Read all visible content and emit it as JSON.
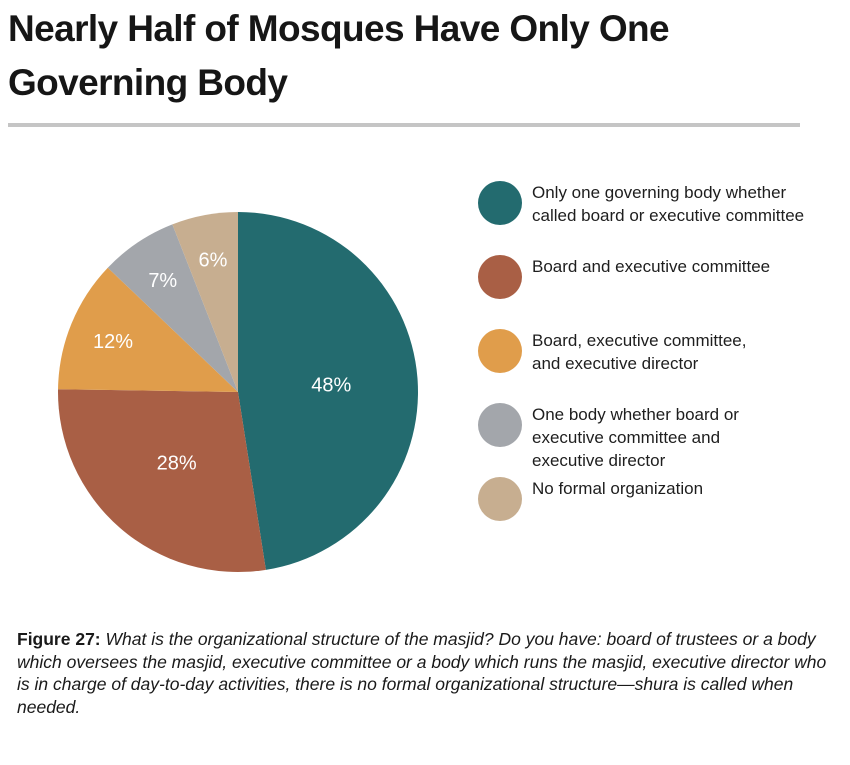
{
  "title": "Nearly Half of Mosques Have Only One Governing Body",
  "chart_data": {
    "type": "pie",
    "slices": [
      {
        "label": "Only one governing body whether called board or executive committee",
        "value": 48,
        "display": "48%",
        "color": "#236b6f"
      },
      {
        "label": "Board and executive committee",
        "value": 28,
        "display": "28%",
        "color": "#a95f45"
      },
      {
        "label": "Board, executive committee, and executive director",
        "value": 12,
        "display": "12%",
        "color": "#e09d4b"
      },
      {
        "label": "One body whether board or executive committee and executive director",
        "value": 7,
        "display": "7%",
        "color": "#a3a6ab"
      },
      {
        "label": "No formal organization",
        "value": 6,
        "display": "6%",
        "color": "#c7ae90"
      }
    ],
    "legend": [
      {
        "text": "Only one governing body whether\ncalled board or executive committee",
        "color": "#236b6f"
      },
      {
        "text": "Board and executive committee",
        "color": "#a95f45"
      },
      {
        "text": "Board, executive committee,\nand executive director",
        "color": "#e09d4b"
      },
      {
        "text": "One body whether board or\nexecutive committee and\nexecutive director",
        "color": "#a3a6ab"
      },
      {
        "text": "No formal organization",
        "color": "#c7ae90"
      }
    ],
    "legend_position": "right"
  },
  "caption": {
    "lead": "Figure 27:",
    "body": " What is the organizational structure of the masjid? Do you have: board of trustees or a body which oversees the masjid, executive committee or a body which runs the masjid, executive director who is in charge of day-to-day activities, there is no formal organizational structure—shura is called when needed."
  }
}
